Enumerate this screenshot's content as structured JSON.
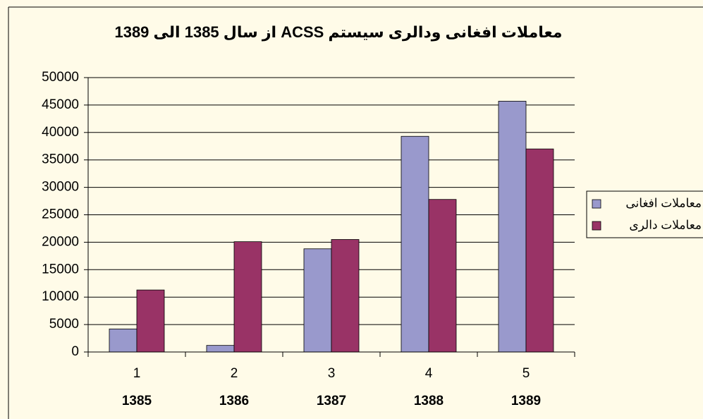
{
  "chart_data": {
    "type": "bar",
    "title": "معاملات افغانی ودالری سیستم ACSS از سال 1385 الی 1389",
    "categories": [
      "1",
      "2",
      "3",
      "4",
      "5"
    ],
    "category_sublabels": [
      "1385",
      "1386",
      "1387",
      "1388",
      "1389"
    ],
    "series": [
      {
        "name": "معاملات افغانی",
        "color": "#9999cc",
        "values": [
          4200,
          1200,
          18800,
          39300,
          45700
        ]
      },
      {
        "name": "معاملات دالری",
        "color": "#993366",
        "values": [
          11300,
          20100,
          20500,
          27800,
          37000
        ]
      }
    ],
    "ylim": [
      0,
      50000
    ],
    "yticks": [
      0,
      5000,
      10000,
      15000,
      20000,
      25000,
      30000,
      35000,
      40000,
      45000,
      50000
    ],
    "grid": true,
    "legend": "right"
  }
}
